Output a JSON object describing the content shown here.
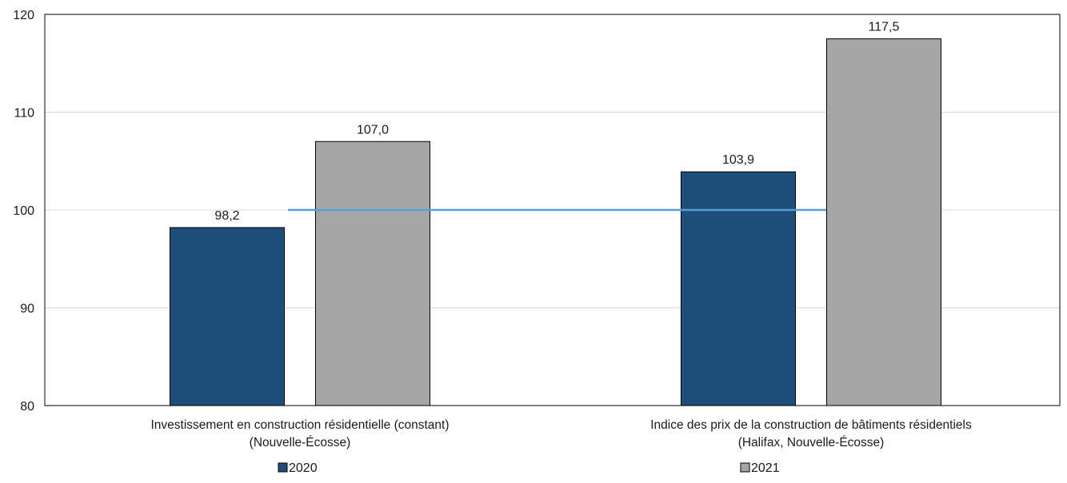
{
  "chart_data": {
    "type": "bar",
    "title": "",
    "xlabel": "",
    "ylabel": "",
    "categories": [
      [
        "Investissement en construction résidentielle (constant)",
        "(Nouvelle-Écosse)"
      ],
      [
        "Indice des prix de la construction de bâtiments résidentiels",
        "(Halifax, Nouvelle-Écosse)"
      ]
    ],
    "series": [
      {
        "name": "2020",
        "color": "#1f4e79",
        "values": [
          98.2,
          103.9
        ],
        "labels": [
          "98,2",
          "103,9"
        ]
      },
      {
        "name": "2021",
        "color": "#a6a6a6",
        "values": [
          107.0,
          117.5
        ],
        "labels": [
          "107,0",
          "117,5"
        ]
      }
    ],
    "ylim": [
      80,
      120
    ],
    "yticks": [
      80,
      90,
      100,
      110,
      120
    ],
    "ytick_labels": [
      "80",
      "90",
      "100",
      "110",
      "120"
    ],
    "reference_line": {
      "y": 100,
      "color": "#5b9bd5"
    },
    "grid": true,
    "legend_position": "bottom"
  }
}
